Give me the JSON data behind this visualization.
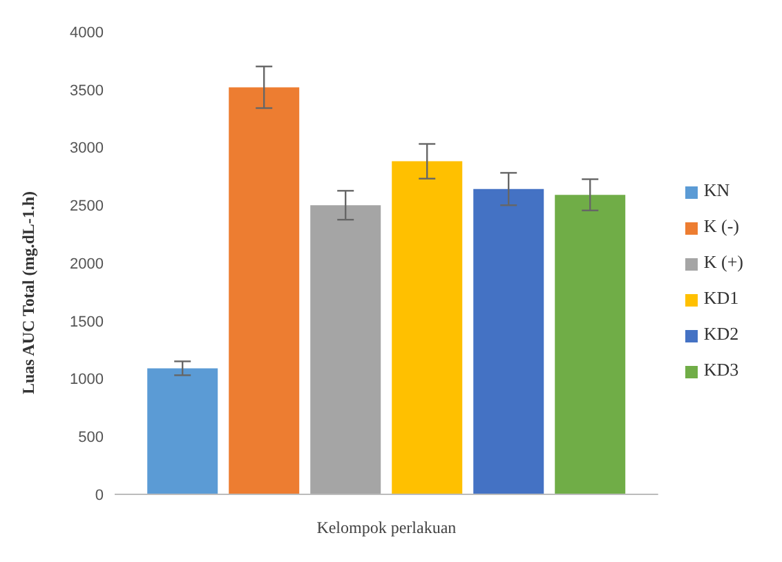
{
  "chart_data": {
    "type": "bar",
    "xlabel": "Kelompok perlakuan",
    "ylabel": "Luas AUC Total (mg.dL-1.h)",
    "categories": [
      null
    ],
    "series": [
      {
        "name": "KN",
        "color": "#5b9bd5",
        "values": [
          1090
        ],
        "errors": [
          60
        ]
      },
      {
        "name": "K (-)",
        "color": "#ed7d31",
        "values": [
          3520
        ],
        "errors": [
          180
        ]
      },
      {
        "name": "K (+)",
        "color": "#a5a5a5",
        "values": [
          2500
        ],
        "errors": [
          125
        ]
      },
      {
        "name": "KD1",
        "color": "#ffc000",
        "values": [
          2880
        ],
        "errors": [
          150
        ]
      },
      {
        "name": "KD2",
        "color": "#4472c4",
        "values": [
          2640
        ],
        "errors": [
          140
        ]
      },
      {
        "name": "KD3",
        "color": "#70ad47",
        "values": [
          2590
        ],
        "errors": [
          135
        ]
      }
    ],
    "ylim": [
      0,
      4000
    ],
    "yticks": [
      0,
      500,
      1000,
      1500,
      2000,
      2500,
      3000,
      3500,
      4000
    ],
    "grid": false,
    "legend": "right"
  }
}
